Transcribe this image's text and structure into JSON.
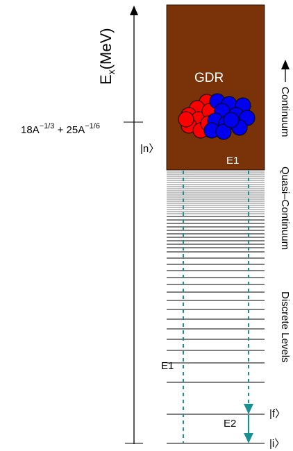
{
  "axis": {
    "title_main": "E",
    "title_sub": "x",
    "title_unit": "(MeV)"
  },
  "threshold_formula": {
    "part1_base": "18A",
    "part1_exp": "−1/3",
    "plus": " + ",
    "part2_base": "25A",
    "part2_exp": "−1/6"
  },
  "gdr": {
    "label": "GDR",
    "transition_label": "E1",
    "fill_color": "#7a3208",
    "proton_color": "#ff0000",
    "neutron_color": "#0000ee"
  },
  "states": {
    "n": "|n〉",
    "f": "|f〉",
    "i": "|i〉"
  },
  "transitions": {
    "primary_e1": "E1",
    "secondary_e2": "E2",
    "arrow_color": "#1a8f8f"
  },
  "regions": {
    "continuum": "Continuum",
    "quasi_continuum": "Quasi–Continuum",
    "discrete": "Discrete Levels"
  }
}
